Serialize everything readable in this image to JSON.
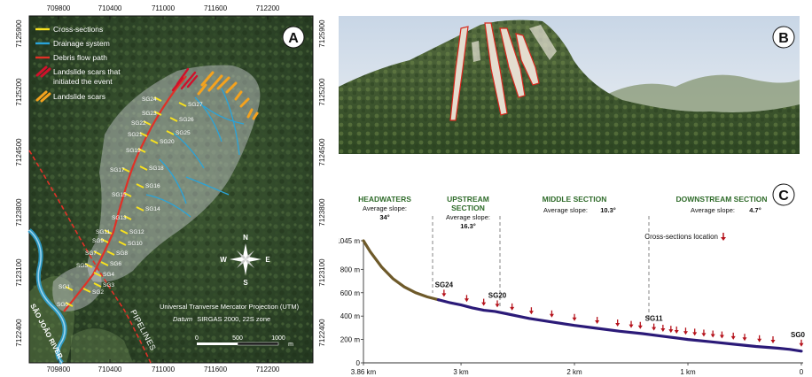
{
  "panel_a": {
    "label": "A",
    "x_ticks": [
      "709800",
      "710400",
      "711000",
      "711600",
      "712200"
    ],
    "y_ticks": [
      "7125900",
      "7125200",
      "7124500",
      "7123800",
      "7123100",
      "7122400"
    ],
    "legend": [
      {
        "label": "Cross-sections",
        "color": "#f7e11f",
        "kind": "line"
      },
      {
        "label": "Drainage system",
        "color": "#2aa3d8",
        "kind": "line"
      },
      {
        "label": "Debris flow path",
        "color": "#e03127",
        "kind": "line"
      },
      {
        "label": "Landslide scars that",
        "label2": "initiated the event",
        "color": "#d0112b",
        "kind": "scar"
      },
      {
        "label": "Landslide scars",
        "color": "#f4a21e",
        "kind": "scar"
      }
    ],
    "section_labels": [
      "SG0",
      "SG1",
      "SG2",
      "SG3",
      "SG4",
      "SG5",
      "SG6",
      "SG7",
      "SG8",
      "SG9",
      "SG10",
      "SG11",
      "SG12",
      "SG13",
      "SG14",
      "SG15",
      "SG16",
      "SG17",
      "SG18",
      "SG19",
      "SG20",
      "SG21",
      "SG22",
      "SG23",
      "SG24",
      "SG25",
      "SG26",
      "SG27"
    ],
    "river_label": "SÃO JOÃO RIVER",
    "pipeline_label": "PIPELINES",
    "compass": {
      "n": "N",
      "s": "S",
      "e": "E",
      "w": "W"
    },
    "projection_line1": "Universal Tranverse Mercator Projection (UTM)",
    "projection_datum": "Datum",
    "projection_line2": "SIRGAS 2000, 22S zone",
    "scale_ticks": [
      "0",
      "500",
      "1000"
    ],
    "scale_unit": "m"
  },
  "panel_b": {
    "label": "B"
  },
  "panel_c": {
    "label": "C",
    "zones": [
      {
        "title": "HEADWATERS",
        "title2": "",
        "slope_label": "Average slope:",
        "slope_value": "34°"
      },
      {
        "title": "UPSTREAM",
        "title2": "SECTION",
        "slope_label": "Average slope:",
        "slope_value": "16.3°"
      },
      {
        "title": "MIDDLE SECTION",
        "title2": "",
        "slope_label": "Average slope:",
        "slope_value": "10.3°"
      },
      {
        "title": "DOWNSTREAM SECTION",
        "title2": "",
        "slope_label": "Average slope:",
        "slope_value": "4.7°"
      }
    ],
    "legend_label": "Cross-sections location",
    "section_markers": [
      {
        "label": "SG24",
        "x": 3.15
      },
      {
        "label": "SG20",
        "x": 2.68
      },
      {
        "label": "SG11",
        "x": 1.3
      },
      {
        "label": "SG0",
        "x": 0.0
      }
    ]
  },
  "chart_data": {
    "type": "line",
    "title": "",
    "xlabel": "",
    "ylabel": "",
    "x_tick_labels": [
      "3.86 km",
      "3 km",
      "2 km",
      "1 km",
      "0"
    ],
    "y_tick_labels": [
      "0",
      "200 m",
      "400 m",
      "600 m",
      "800 m",
      "1045 m"
    ],
    "xlim": [
      3.86,
      0
    ],
    "ylim": [
      0,
      1045
    ],
    "colors": {
      "headwater_segment": "#6e5a2a",
      "profile": "#2b1a78",
      "markers": "#b5121b"
    },
    "series": [
      {
        "values_x": [
          3.86,
          3.8,
          3.7,
          3.6,
          3.5,
          3.4,
          3.3,
          3.2,
          3.1,
          3.0,
          2.9,
          2.8,
          2.7,
          2.6,
          2.5,
          2.4,
          2.2,
          2.0,
          1.8,
          1.6,
          1.4,
          1.2,
          1.0,
          0.8,
          0.6,
          0.4,
          0.2,
          0.1,
          0.0
        ],
        "values_y": [
          1045,
          950,
          820,
          720,
          650,
          600,
          565,
          540,
          515,
          495,
          470,
          450,
          440,
          420,
          400,
          380,
          350,
          320,
          295,
          270,
          250,
          225,
          200,
          180,
          160,
          140,
          125,
          115,
          100
        ]
      }
    ],
    "cross_section_x": [
      3.15,
      2.95,
      2.8,
      2.68,
      2.55,
      2.38,
      2.2,
      2.0,
      1.8,
      1.62,
      1.5,
      1.42,
      1.3,
      1.22,
      1.15,
      1.1,
      1.02,
      0.94,
      0.86,
      0.78,
      0.7,
      0.6,
      0.5,
      0.37,
      0.25,
      0.0
    ]
  }
}
